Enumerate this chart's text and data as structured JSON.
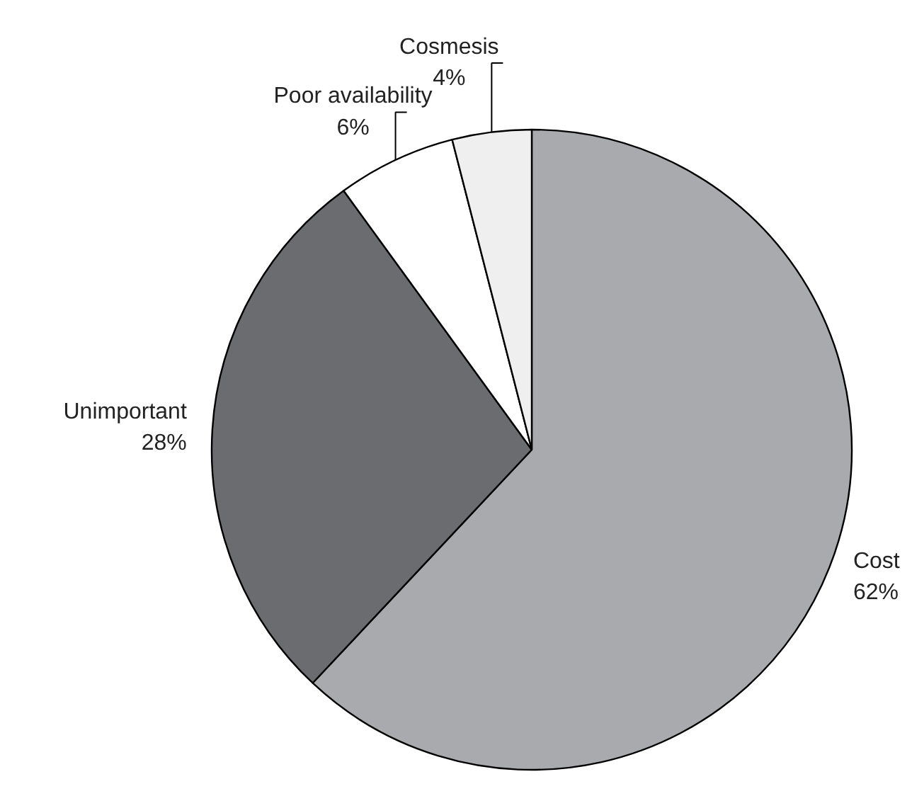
{
  "chart_data": {
    "type": "pie",
    "categories": [
      "Cost",
      "Unimportant",
      "Poor availability",
      "Cosmesis"
    ],
    "values": [
      62,
      28,
      6,
      4
    ],
    "value_labels": [
      "62%",
      "28%",
      "6%",
      "4%"
    ],
    "colors": [
      "#a9aaad",
      "#6b6c70",
      "#ffffff",
      "#eeefee"
    ]
  }
}
